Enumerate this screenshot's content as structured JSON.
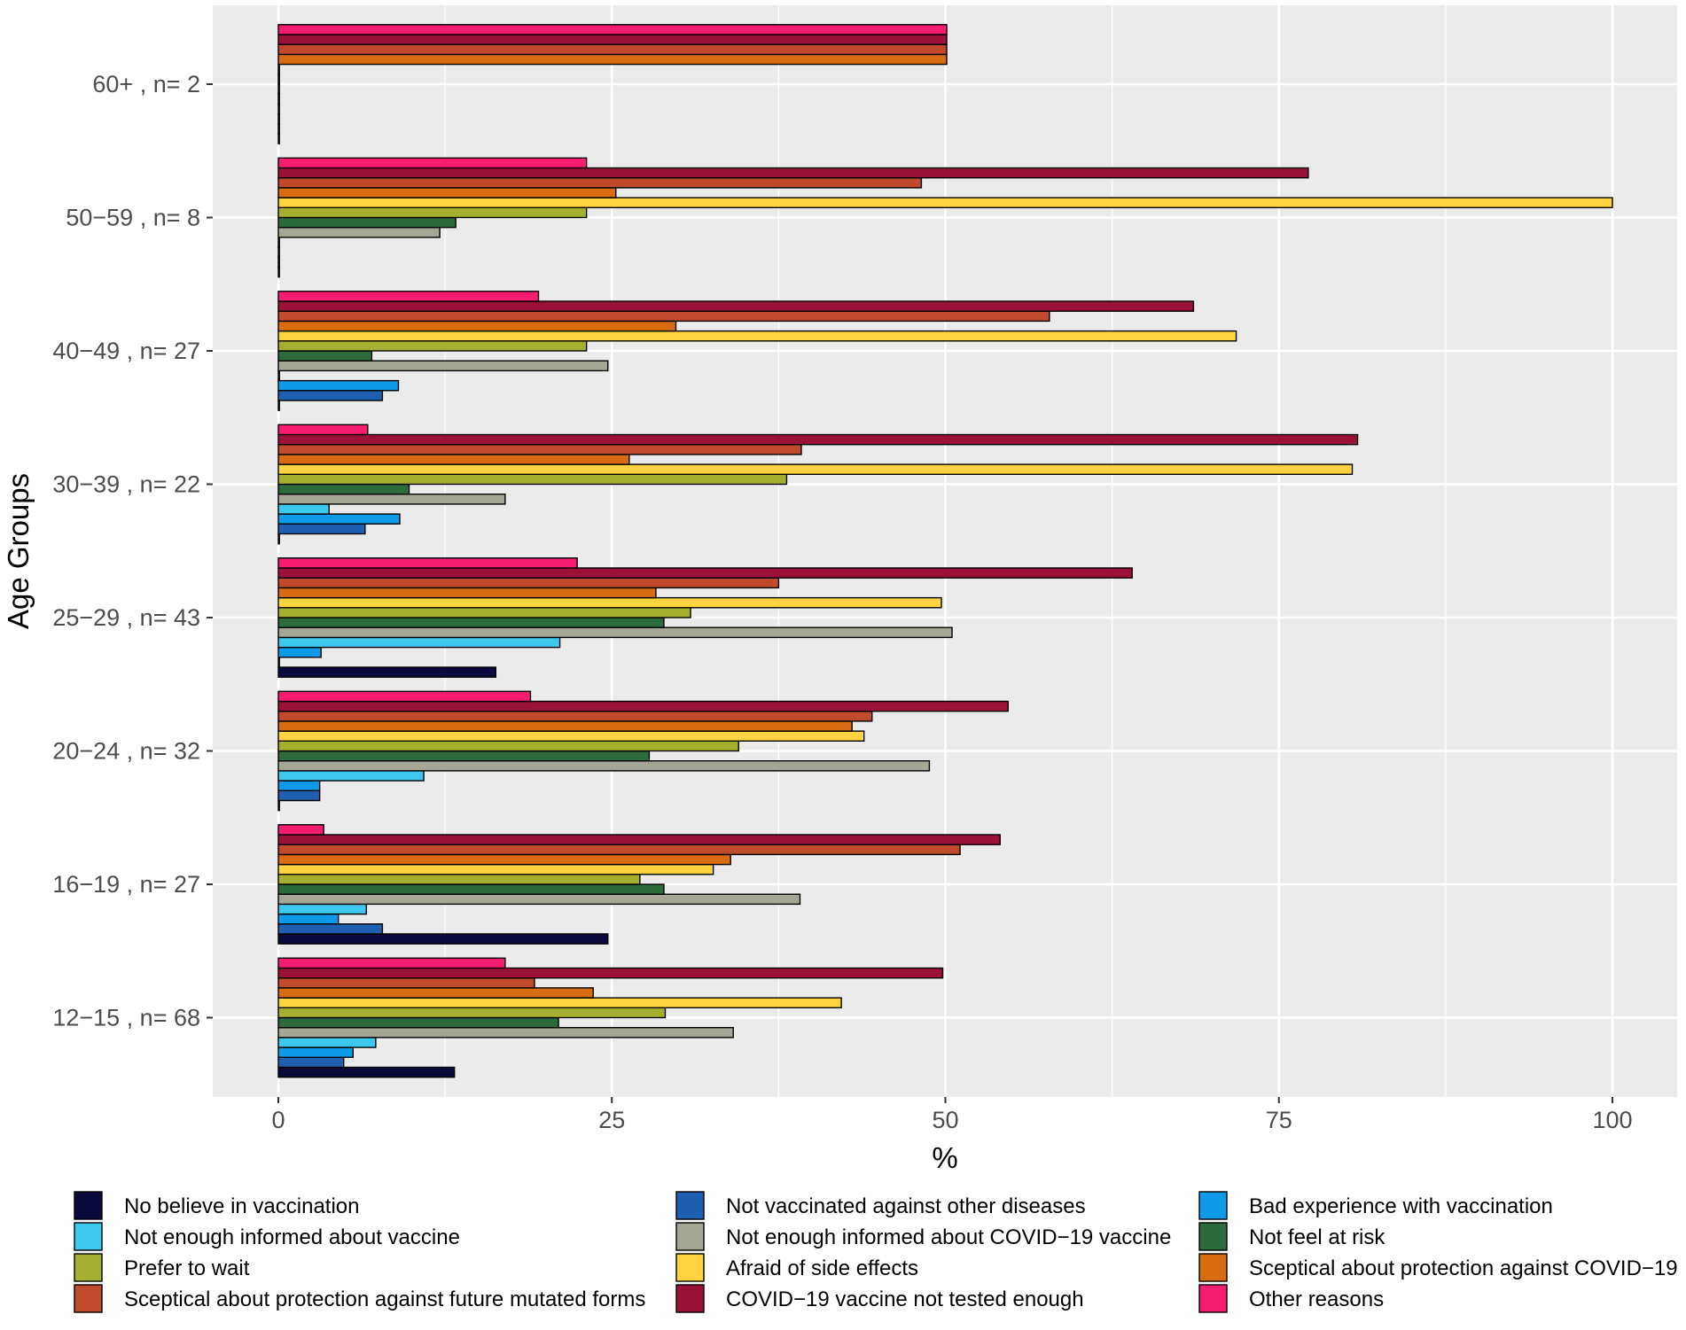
{
  "chart_data": {
    "type": "bar",
    "orientation": "horizontal",
    "title": "",
    "xlabel": "%",
    "ylabel": "Age Groups",
    "xlim": [
      0,
      100
    ],
    "xticks": [
      "0",
      "25",
      "50",
      "75",
      "100"
    ],
    "xtick_values": [
      0,
      25,
      50,
      75,
      100
    ],
    "categories": [
      "60+ , n= 2",
      "50−59 , n= 8",
      "40−49 , n= 27",
      "30−39 , n= 22",
      "25−29 , n= 43",
      "20−24 , n= 32",
      "16−19 , n= 27",
      "12−15 , n= 68"
    ],
    "series": [
      {
        "name": "No believe in vaccination",
        "color": "#0a0a3c",
        "values": [
          0,
          0,
          0,
          0,
          16.3,
          0,
          24.7,
          13.2
        ]
      },
      {
        "name": "Not vaccinated against other diseases",
        "color": "#1f5fb0",
        "values": [
          0,
          0,
          7.8,
          6.5,
          0,
          3.1,
          7.8,
          4.9
        ]
      },
      {
        "name": "Bad experience with vaccination",
        "color": "#0d9be8",
        "values": [
          0,
          0,
          9.0,
          9.1,
          3.2,
          3.1,
          4.5,
          5.6
        ]
      },
      {
        "name": "Not enough informed about vaccine",
        "color": "#3dc8ee",
        "values": [
          0,
          0,
          0,
          3.8,
          21.1,
          10.9,
          6.6,
          7.3
        ]
      },
      {
        "name": "Not enough informed about COVID−19 vaccine",
        "color": "#a6a697",
        "values": [
          0,
          12.1,
          24.7,
          17.0,
          50.5,
          48.8,
          39.1,
          34.1
        ]
      },
      {
        "name": "Not feel at risk",
        "color": "#2e6b3c",
        "values": [
          0,
          13.3,
          7.0,
          9.8,
          28.9,
          27.8,
          28.9,
          21.0
        ]
      },
      {
        "name": "Prefer to wait",
        "color": "#a6b030",
        "values": [
          0,
          23.1,
          23.1,
          38.1,
          30.9,
          34.5,
          27.1,
          29.0
        ]
      },
      {
        "name": "Afraid of side effects",
        "color": "#ffd23f",
        "values": [
          0,
          100.0,
          71.8,
          80.5,
          49.7,
          43.9,
          32.6,
          42.2
        ]
      },
      {
        "name": "Sceptical about protection against COVID−19",
        "color": "#d86c12",
        "values": [
          50.1,
          25.3,
          29.8,
          26.3,
          28.3,
          43.0,
          33.9,
          23.6
        ]
      },
      {
        "name": "Sceptical about protection against future mutated forms",
        "color": "#c04a2c",
        "values": [
          50.1,
          48.2,
          57.8,
          39.2,
          37.5,
          44.5,
          51.1,
          19.2
        ]
      },
      {
        "name": "COVID−19 vaccine not tested enough",
        "color": "#9b1238",
        "values": [
          50.1,
          77.2,
          68.6,
          80.9,
          64.0,
          54.7,
          54.1,
          49.8
        ]
      },
      {
        "name": "Other reasons",
        "color": "#f51d70",
        "values": [
          50.1,
          23.1,
          19.5,
          6.7,
          22.4,
          18.9,
          3.4,
          17.0
        ]
      }
    ],
    "grid": true,
    "legend_position": "bottom",
    "background": "#ebebeb",
    "gridline_color": "#ffffff"
  }
}
